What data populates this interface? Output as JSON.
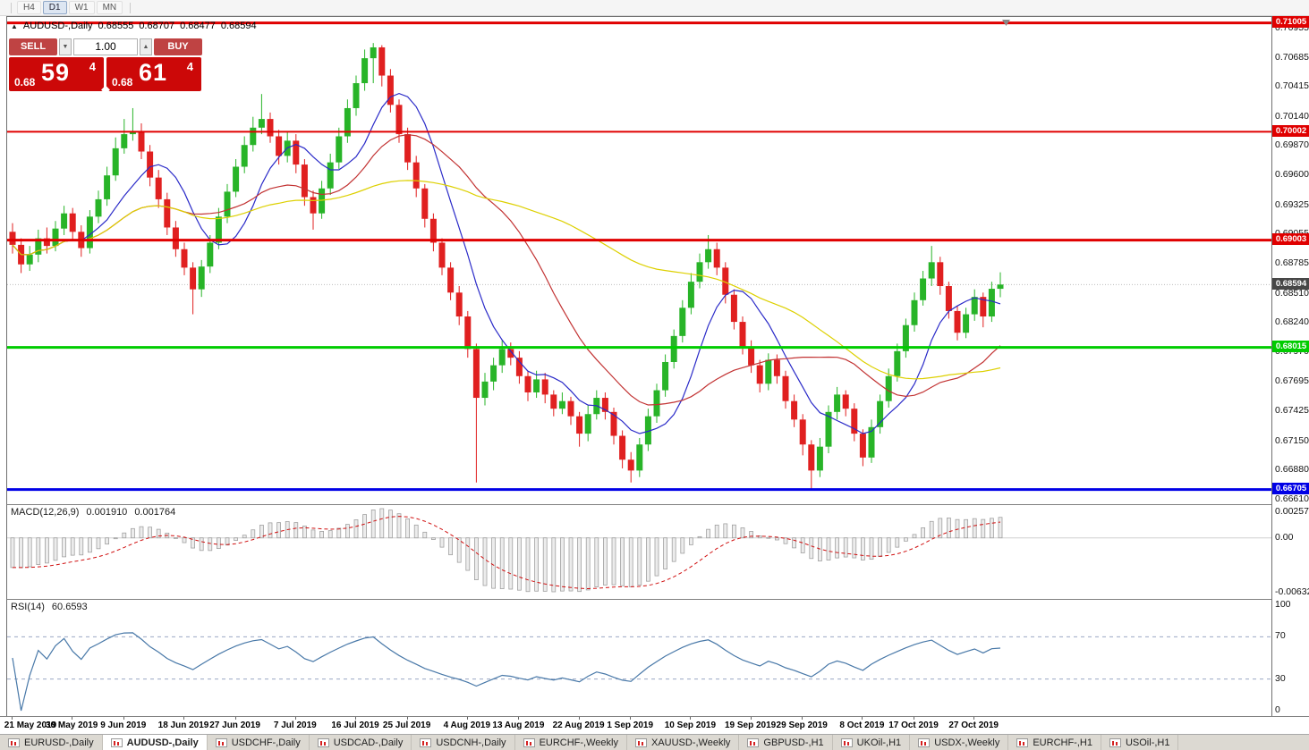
{
  "toolbar": {
    "timeframes": [
      "H4",
      "D1",
      "W1",
      "MN"
    ],
    "active": "D1"
  },
  "chart_header": {
    "marker": "▲",
    "symbol": "AUDUSD-,Daily",
    "open": "0.68555",
    "high": "0.68707",
    "low": "0.68477",
    "close": "0.68594"
  },
  "trade_panel": {
    "sell_label": "SELL",
    "buy_label": "BUY",
    "volume": "1.00",
    "spin_down": "▼",
    "spin_up": "▲",
    "sell_price": {
      "prefix": "0.68",
      "big": "59",
      "sup": "4"
    },
    "buy_price": {
      "prefix": "0.68",
      "big": "61",
      "sup": "4"
    }
  },
  "indicators": {
    "macd": {
      "label": "MACD(12,26,9)",
      "value_main": "0.001910",
      "value_signal": "0.001764",
      "axis_max": "0.002574",
      "axis_zero": "0.00",
      "axis_min": "-0.006326",
      "signal_color": "#d01010",
      "bar_fill": "#ececec",
      "bar_stroke": "#9b9b9b"
    },
    "rsi": {
      "label": "RSI(14)",
      "value": "60.6593",
      "axis": [
        "100",
        "70",
        "30",
        "0"
      ],
      "upper_level": 70,
      "lower_level": 30,
      "line_color": "#4878a8",
      "level_color": "#9aa8c4"
    }
  },
  "tabs": [
    {
      "label": "EURUSD-,Daily",
      "active": false
    },
    {
      "label": "AUDUSD-,Daily",
      "active": true
    },
    {
      "label": "USDCHF-,Daily",
      "active": false
    },
    {
      "label": "USDCAD-,Daily",
      "active": false
    },
    {
      "label": "USDCNH-,Daily",
      "active": false
    },
    {
      "label": "EURCHF-,Weekly",
      "active": false
    },
    {
      "label": "XAUUSD-,Weekly",
      "active": false
    },
    {
      "label": "GBPUSD-,H1",
      "active": false
    },
    {
      "label": "UKOil-,H1",
      "active": false
    },
    {
      "label": "USDX-,Weekly",
      "active": false
    },
    {
      "label": "EURCHF-,H1",
      "active": false
    },
    {
      "label": "USOil-,H1",
      "active": false
    }
  ],
  "chart_data": {
    "type": "candlestick",
    "symbol": "AUDUSD",
    "timeframe": "Daily",
    "title": "AUDUSD-,Daily 0.68555 0.68707 0.68477 0.68594",
    "y_view": [
      0.6657,
      0.7106
    ],
    "y_ticks": [
      "0.70955",
      "0.70685",
      "0.70415",
      "0.70140",
      "0.69870",
      "0.69600",
      "0.69325",
      "0.69055",
      "0.68785",
      "0.68510",
      "0.68240",
      "0.67970",
      "0.67695",
      "0.67425",
      "0.67150",
      "0.66880",
      "0.66610"
    ],
    "x_labels": [
      "21 May 2019",
      "30 May 2019",
      "9 Jun 2019",
      "18 Jun 2019",
      "27 Jun 2019",
      "7 Jul 2019",
      "16 Jul 2019",
      "25 Jul 2019",
      "4 Aug 2019",
      "13 Aug 2019",
      "22 Aug 2019",
      "1 Sep 2019",
      "10 Sep 2019",
      "19 Sep 2019",
      "29 Sep 2019",
      "8 Oct 2019",
      "17 Oct 2019",
      "27 Oct 2019"
    ],
    "current_price": 0.68594,
    "current_price_label": "0.68594",
    "current_badge_color": "#474747",
    "colors": {
      "up": "#28b428",
      "down": "#e02020"
    },
    "levels": [
      {
        "price": 0.71005,
        "label": "0.71005",
        "color": "#e00000",
        "width": 3
      },
      {
        "price": 0.70002,
        "label": "0.70002",
        "color": "#e00000",
        "width": 2
      },
      {
        "price": 0.69003,
        "label": "0.69003",
        "color": "#e00000",
        "width": 3
      },
      {
        "price": 0.68015,
        "label": "0.68015",
        "color": "#00cc00",
        "width": 3
      },
      {
        "price": 0.66705,
        "label": "0.66705",
        "color": "#0000e6",
        "width": 3
      }
    ],
    "ma_lines": [
      {
        "name": "fast",
        "period": 8,
        "color": "#2a2ac8"
      },
      {
        "name": "medium",
        "period": 21,
        "color": "#c23232"
      },
      {
        "name": "slow",
        "period": 55,
        "color": "#ddd000"
      }
    ],
    "macd_settings": {
      "fast": 12,
      "slow": 26,
      "signal": 9
    },
    "rsi_period": 14,
    "candles": [
      [
        0.6908,
        0.6916,
        0.6888,
        0.6896
      ],
      [
        0.6896,
        0.6902,
        0.687,
        0.6878
      ],
      [
        0.6878,
        0.6895,
        0.6872,
        0.6887
      ],
      [
        0.6887,
        0.691,
        0.688,
        0.6902
      ],
      [
        0.6902,
        0.6912,
        0.6888,
        0.6895
      ],
      [
        0.6895,
        0.6918,
        0.689,
        0.6911
      ],
      [
        0.6911,
        0.6932,
        0.6905,
        0.6925
      ],
      [
        0.6925,
        0.693,
        0.69,
        0.6908
      ],
      [
        0.6908,
        0.6914,
        0.6885,
        0.6893
      ],
      [
        0.6893,
        0.6928,
        0.6888,
        0.6922
      ],
      [
        0.6922,
        0.6946,
        0.6916,
        0.6938
      ],
      [
        0.6938,
        0.6968,
        0.6932,
        0.696
      ],
      [
        0.696,
        0.6995,
        0.6955,
        0.6985
      ],
      [
        0.6985,
        0.7012,
        0.698,
        0.6998
      ],
      [
        0.6998,
        0.7022,
        0.6992,
        0.7
      ],
      [
        0.7,
        0.7008,
        0.6975,
        0.6982
      ],
      [
        0.6982,
        0.6988,
        0.695,
        0.6958
      ],
      [
        0.6958,
        0.6965,
        0.693,
        0.6938
      ],
      [
        0.6938,
        0.6944,
        0.6905,
        0.6912
      ],
      [
        0.6912,
        0.6918,
        0.6885,
        0.6892
      ],
      [
        0.6892,
        0.6898,
        0.6868,
        0.6875
      ],
      [
        0.6875,
        0.688,
        0.6832,
        0.6855
      ],
      [
        0.6855,
        0.6882,
        0.6848,
        0.6876
      ],
      [
        0.6876,
        0.6905,
        0.687,
        0.6898
      ],
      [
        0.6898,
        0.693,
        0.6892,
        0.6922
      ],
      [
        0.6922,
        0.6952,
        0.6916,
        0.6945
      ],
      [
        0.6945,
        0.6975,
        0.694,
        0.6968
      ],
      [
        0.6968,
        0.6996,
        0.6962,
        0.6988
      ],
      [
        0.6988,
        0.7014,
        0.6982,
        0.7004
      ],
      [
        0.7004,
        0.7035,
        0.6998,
        0.7012
      ],
      [
        0.7012,
        0.7018,
        0.699,
        0.6996
      ],
      [
        0.6996,
        0.7002,
        0.697,
        0.6978
      ],
      [
        0.6978,
        0.7,
        0.6972,
        0.6992
      ],
      [
        0.6992,
        0.6998,
        0.6962,
        0.697
      ],
      [
        0.697,
        0.6975,
        0.6932,
        0.694
      ],
      [
        0.694,
        0.6946,
        0.691,
        0.6925
      ],
      [
        0.6925,
        0.6955,
        0.692,
        0.6948
      ],
      [
        0.6948,
        0.698,
        0.6942,
        0.6972
      ],
      [
        0.6972,
        0.7004,
        0.6966,
        0.6996
      ],
      [
        0.6996,
        0.703,
        0.699,
        0.7022
      ],
      [
        0.7022,
        0.7052,
        0.7015,
        0.7045
      ],
      [
        0.7045,
        0.7076,
        0.7038,
        0.7068
      ],
      [
        0.7068,
        0.7082,
        0.7045,
        0.7078
      ],
      [
        0.7078,
        0.708,
        0.7042,
        0.7052
      ],
      [
        0.7052,
        0.7058,
        0.7018,
        0.7025
      ],
      [
        0.7025,
        0.703,
        0.699,
        0.6998
      ],
      [
        0.6998,
        0.7004,
        0.6965,
        0.6972
      ],
      [
        0.6972,
        0.6978,
        0.694,
        0.6948
      ],
      [
        0.6948,
        0.6952,
        0.6912,
        0.692
      ],
      [
        0.692,
        0.6925,
        0.689,
        0.6898
      ],
      [
        0.6898,
        0.6902,
        0.6868,
        0.6875
      ],
      [
        0.6875,
        0.688,
        0.6845,
        0.6852
      ],
      [
        0.6852,
        0.6858,
        0.6822,
        0.683
      ],
      [
        0.683,
        0.6835,
        0.6792,
        0.68
      ],
      [
        0.68,
        0.6805,
        0.6677,
        0.6755
      ],
      [
        0.6755,
        0.6778,
        0.6748,
        0.677
      ],
      [
        0.677,
        0.6792,
        0.6762,
        0.6785
      ],
      [
        0.6785,
        0.6808,
        0.6778,
        0.68
      ],
      [
        0.68,
        0.6806,
        0.6785,
        0.6792
      ],
      [
        0.6792,
        0.6798,
        0.6768,
        0.6775
      ],
      [
        0.6775,
        0.678,
        0.6752,
        0.676
      ],
      [
        0.676,
        0.678,
        0.6755,
        0.6772
      ],
      [
        0.6772,
        0.6778,
        0.675,
        0.6758
      ],
      [
        0.6758,
        0.6762,
        0.6738,
        0.6745
      ],
      [
        0.6745,
        0.676,
        0.674,
        0.6752
      ],
      [
        0.6752,
        0.6756,
        0.673,
        0.6738
      ],
      [
        0.6738,
        0.6742,
        0.671,
        0.6722
      ],
      [
        0.6722,
        0.6748,
        0.6715,
        0.674
      ],
      [
        0.674,
        0.6762,
        0.6735,
        0.6755
      ],
      [
        0.6755,
        0.676,
        0.6735,
        0.6742
      ],
      [
        0.6742,
        0.6746,
        0.6712,
        0.672
      ],
      [
        0.672,
        0.6725,
        0.669,
        0.6698
      ],
      [
        0.6698,
        0.6705,
        0.6677,
        0.6688
      ],
      [
        0.6688,
        0.6718,
        0.6682,
        0.6712
      ],
      [
        0.6712,
        0.6745,
        0.6706,
        0.6738
      ],
      [
        0.6738,
        0.6768,
        0.6732,
        0.6762
      ],
      [
        0.6762,
        0.6795,
        0.6756,
        0.6788
      ],
      [
        0.6788,
        0.6818,
        0.6782,
        0.6812
      ],
      [
        0.6812,
        0.6845,
        0.6806,
        0.6838
      ],
      [
        0.6838,
        0.687,
        0.6832,
        0.6862
      ],
      [
        0.6862,
        0.6888,
        0.6856,
        0.688
      ],
      [
        0.688,
        0.6905,
        0.6874,
        0.6892
      ],
      [
        0.6892,
        0.6898,
        0.6868,
        0.6875
      ],
      [
        0.6875,
        0.688,
        0.6842,
        0.685
      ],
      [
        0.685,
        0.6855,
        0.6818,
        0.6825
      ],
      [
        0.6825,
        0.683,
        0.6795,
        0.6802
      ],
      [
        0.6802,
        0.6808,
        0.6778,
        0.6785
      ],
      [
        0.6785,
        0.679,
        0.676,
        0.6768
      ],
      [
        0.6768,
        0.6796,
        0.6762,
        0.679
      ],
      [
        0.679,
        0.6795,
        0.6768,
        0.6775
      ],
      [
        0.6775,
        0.678,
        0.6745,
        0.6752
      ],
      [
        0.6752,
        0.6758,
        0.6728,
        0.6735
      ],
      [
        0.6735,
        0.674,
        0.6702,
        0.6712
      ],
      [
        0.6712,
        0.6716,
        0.667,
        0.6688
      ],
      [
        0.6688,
        0.6718,
        0.6682,
        0.671
      ],
      [
        0.671,
        0.6748,
        0.6704,
        0.6742
      ],
      [
        0.6742,
        0.6765,
        0.6735,
        0.6758
      ],
      [
        0.6758,
        0.6762,
        0.6738,
        0.6745
      ],
      [
        0.6745,
        0.675,
        0.6715,
        0.6722
      ],
      [
        0.6722,
        0.6726,
        0.6692,
        0.67
      ],
      [
        0.67,
        0.6735,
        0.6695,
        0.6728
      ],
      [
        0.6728,
        0.6758,
        0.6722,
        0.6752
      ],
      [
        0.6752,
        0.6782,
        0.6746,
        0.6775
      ],
      [
        0.6775,
        0.6805,
        0.677,
        0.6798
      ],
      [
        0.6798,
        0.6828,
        0.6792,
        0.6822
      ],
      [
        0.6822,
        0.6852,
        0.6816,
        0.6845
      ],
      [
        0.6845,
        0.6872,
        0.684,
        0.6865
      ],
      [
        0.6865,
        0.6895,
        0.6858,
        0.688
      ],
      [
        0.688,
        0.6885,
        0.685,
        0.6858
      ],
      [
        0.6858,
        0.6862,
        0.6828,
        0.6835
      ],
      [
        0.6835,
        0.684,
        0.6808,
        0.6815
      ],
      [
        0.6815,
        0.6838,
        0.681,
        0.6832
      ],
      [
        0.6832,
        0.6855,
        0.6826,
        0.6848
      ],
      [
        0.6848,
        0.6852,
        0.682,
        0.683
      ],
      [
        0.683,
        0.6862,
        0.6825,
        0.68555
      ],
      [
        0.68555,
        0.68707,
        0.68477,
        0.68594
      ]
    ]
  }
}
